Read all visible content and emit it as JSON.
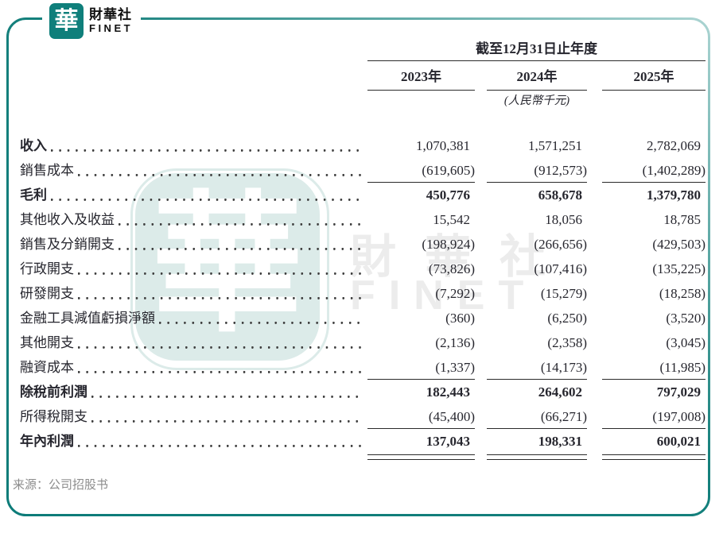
{
  "brand": {
    "logo_char": "華",
    "name_zh": "財華社",
    "name_en": "FINET"
  },
  "colors": {
    "brand_teal": "#0f7f7b",
    "frame_teal_dark": "#0d7c79",
    "frame_teal_light": "#abd4d2",
    "stamp_fill": "#dcebe9",
    "watermark_gray": "#ececec",
    "text": "#26262e",
    "muted": "#8c8c8c"
  },
  "watermark": {
    "stamp_char": "華",
    "text_zh": "財華社",
    "text_en": "FINET"
  },
  "table": {
    "period_header": "截至12月31日止年度",
    "columns": [
      "2023年",
      "2024年",
      "2025年"
    ],
    "unit_note": "(人民幣千元)",
    "rows": [
      {
        "label": "收入",
        "values": [
          "1,070,381",
          "1,571,251",
          "2,782,069"
        ],
        "label_bold": true,
        "values_bold": false,
        "rule": "none"
      },
      {
        "label": "銷售成本",
        "values": [
          "(619,605)",
          "(912,573)",
          "(1,402,289)"
        ],
        "label_bold": false,
        "values_bold": false,
        "rule": "single"
      },
      {
        "label": "毛利",
        "values": [
          "450,776",
          "658,678",
          "1,379,780"
        ],
        "label_bold": true,
        "values_bold": true,
        "rule": "none"
      },
      {
        "label": "其他收入及收益",
        "values": [
          "15,542",
          "18,056",
          "18,785"
        ],
        "label_bold": false,
        "values_bold": false,
        "rule": "none"
      },
      {
        "label": "銷售及分銷開支",
        "values": [
          "(198,924)",
          "(266,656)",
          "(429,503)"
        ],
        "label_bold": false,
        "values_bold": false,
        "rule": "none"
      },
      {
        "label": "行政開支",
        "values": [
          "(73,826)",
          "(107,416)",
          "(135,225)"
        ],
        "label_bold": false,
        "values_bold": false,
        "rule": "none"
      },
      {
        "label": "研發開支",
        "values": [
          "(7,292)",
          "(15,279)",
          "(18,258)"
        ],
        "label_bold": false,
        "values_bold": false,
        "rule": "none"
      },
      {
        "label": "金融工具減值虧損淨額",
        "values": [
          "(360)",
          "(6,250)",
          "(3,520)"
        ],
        "label_bold": false,
        "values_bold": false,
        "rule": "none"
      },
      {
        "label": "其他開支",
        "values": [
          "(2,136)",
          "(2,358)",
          "(3,045)"
        ],
        "label_bold": false,
        "values_bold": false,
        "rule": "none"
      },
      {
        "label": "融資成本",
        "values": [
          "(1,337)",
          "(14,173)",
          "(11,985)"
        ],
        "label_bold": false,
        "values_bold": false,
        "rule": "single"
      },
      {
        "label": "除稅前利潤",
        "values": [
          "182,443",
          "264,602",
          "797,029"
        ],
        "label_bold": true,
        "values_bold": true,
        "rule": "none"
      },
      {
        "label": "所得稅開支",
        "values": [
          "(45,400)",
          "(66,271)",
          "(197,008)"
        ],
        "label_bold": false,
        "values_bold": false,
        "rule": "single"
      },
      {
        "label": "年內利潤",
        "values": [
          "137,043",
          "198,331",
          "600,021"
        ],
        "label_bold": true,
        "values_bold": true,
        "rule": "double"
      }
    ]
  },
  "footer": {
    "source": "来源：公司招股书"
  }
}
